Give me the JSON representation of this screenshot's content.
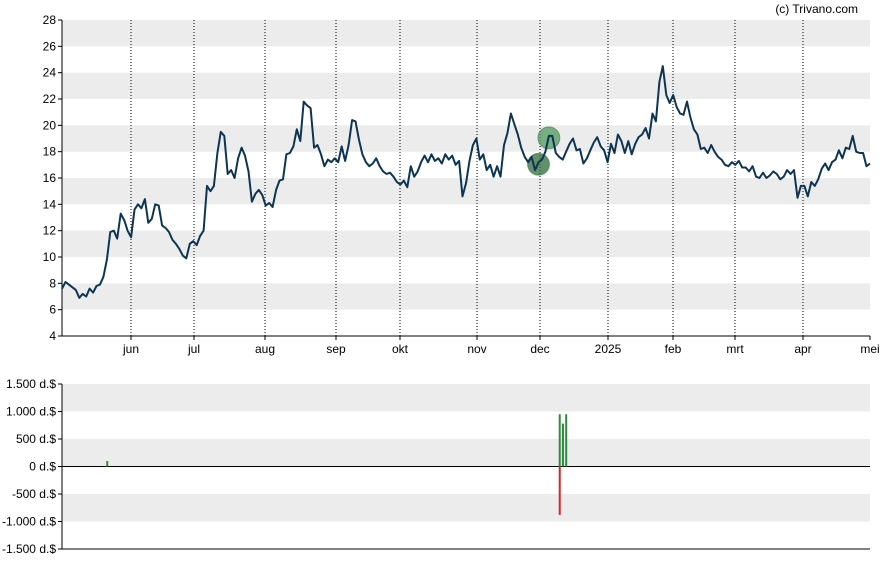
{
  "copyright": "(c) Trivano.com",
  "chart_data": [
    {
      "type": "line",
      "y_ticks": [
        "4",
        "6",
        "8",
        "10",
        "12",
        "14",
        "16",
        "18",
        "20",
        "22",
        "24",
        "26",
        "28"
      ],
      "ylim": [
        4,
        28
      ],
      "x_ticks": [
        "jun",
        "jul",
        "aug",
        "sep",
        "okt",
        "nov",
        "dec",
        "2025",
        "feb",
        "mrt",
        "apr",
        "mei"
      ],
      "grid": "alternating horizontal bands, dotted vertical lines",
      "series": [
        {
          "color": "#0d3552",
          "values": [
            7.6,
            8.1,
            7.9,
            7.7,
            7.5,
            6.9,
            7.2,
            7.0,
            7.6,
            7.3,
            7.8,
            7.9,
            8.5,
            9.8,
            11.9,
            12.0,
            11.4,
            13.3,
            12.8,
            12.0,
            11.5,
            13.6,
            14.0,
            13.7,
            14.4,
            12.6,
            12.9,
            14.0,
            13.9,
            12.4,
            12.2,
            11.9,
            11.3,
            11.0,
            10.6,
            10.1,
            9.9,
            11.0,
            11.2,
            10.9,
            11.6,
            12.0,
            15.4,
            15.0,
            15.4,
            17.9,
            19.5,
            19.2,
            16.3,
            16.6,
            16.0,
            17.5,
            18.3,
            17.7,
            16.5,
            14.2,
            14.8,
            15.1,
            14.7,
            13.9,
            14.1,
            13.8,
            15.1,
            15.8,
            15.9,
            17.8,
            17.9,
            18.4,
            19.7,
            18.8,
            21.8,
            21.5,
            21.3,
            18.3,
            18.5,
            17.8,
            16.9,
            17.4,
            17.2,
            17.5,
            17.2,
            18.4,
            17.3,
            18.5,
            20.4,
            20.3,
            18.9,
            17.8,
            17.2,
            16.9,
            17.1,
            17.5,
            16.9,
            16.5,
            16.3,
            16.4,
            16.1,
            15.7,
            15.5,
            15.8,
            15.3,
            16.9,
            16.1,
            16.5,
            17.2,
            17.7,
            17.2,
            17.8,
            17.3,
            17.5,
            17.1,
            17.8,
            17.4,
            17.7,
            17.0,
            17.3,
            14.6,
            15.6,
            17.3,
            18.5,
            19.0,
            17.4,
            17.8,
            16.6,
            17.0,
            16.1,
            16.9,
            16.1,
            18.5,
            19.4,
            20.9,
            20.1,
            19.3,
            18.3,
            17.6,
            17.2,
            17.6,
            16.6,
            17.2,
            17.4,
            18.0,
            19.2,
            19.2,
            17.9,
            17.6,
            17.4,
            18.0,
            18.6,
            19.0,
            18.1,
            18.2,
            17.1,
            17.5,
            18.1,
            18.7,
            19.1,
            18.4,
            18.1,
            17.2,
            18.6,
            17.9,
            19.3,
            18.8,
            17.9,
            18.8,
            17.8,
            18.6,
            19.1,
            19.3,
            19.8,
            19.0,
            20.9,
            20.3,
            23.3,
            24.5,
            22.3,
            21.7,
            22.3,
            21.4,
            20.9,
            20.8,
            21.8,
            20.6,
            19.7,
            19.3,
            18.2,
            18.3,
            17.9,
            18.5,
            18.0,
            17.6,
            17.4,
            17.0,
            16.9,
            17.2,
            17.0,
            17.3,
            16.8,
            16.8,
            16.5,
            16.9,
            16.1,
            16.0,
            16.4,
            16.0,
            16.2,
            16.5,
            16.3,
            15.9,
            16.1,
            16.6,
            16.3,
            16.6,
            14.5,
            15.4,
            15.4,
            14.6,
            15.7,
            15.4,
            15.9,
            16.7,
            17.1,
            16.6,
            17.2,
            17.4,
            18.1,
            17.5,
            18.3,
            18.2,
            19.2,
            18.0,
            17.9,
            17.9,
            16.9,
            17.1
          ]
        }
      ],
      "annotation": {
        "type": "highlight-circles",
        "at_index": [
          138,
          141
        ],
        "colors": [
          "#2e6b3c",
          "#4f9a5f"
        ]
      }
    },
    {
      "type": "bar",
      "y_ticks": [
        "1.500 d.$",
        "1.000 d.$",
        "500 d.$",
        "0 d.$",
        "-500 d.$",
        "-1.000 d.$",
        "-1.500 d.$"
      ],
      "ylim": [
        -1500,
        1500
      ],
      "x_count": 251,
      "bars": [
        {
          "index": 14,
          "value": 100,
          "color": "#2e8b3c"
        },
        {
          "index": 154,
          "value": 950,
          "color": "#2e8b3c"
        },
        {
          "index": 154,
          "value": -880,
          "color": "#d62728"
        },
        {
          "index": 155,
          "value": 780,
          "color": "#2e8b3c"
        },
        {
          "index": 156,
          "value": 950,
          "color": "#2e8b3c"
        }
      ]
    }
  ]
}
